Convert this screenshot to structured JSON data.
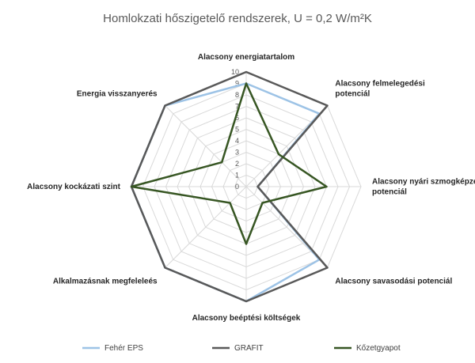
{
  "chart_data": {
    "type": "radar",
    "title": "Homlokzati hőszigetelő rendszerek, U = 0,2 W/m²K",
    "axes": [
      {
        "label": [
          "Alacsony energiatartalom"
        ]
      },
      {
        "label": [
          "Alacsony felmelegedési",
          "potenciál"
        ]
      },
      {
        "label": [
          "Alacsony nyári szmogképzési",
          "potenciál"
        ]
      },
      {
        "label": [
          "Alacsony savasodási potenciál"
        ]
      },
      {
        "label": [
          "Alacsony beéptési költségek"
        ]
      },
      {
        "label": [
          "Alkalmazásnak megfeleleés"
        ]
      },
      {
        "label": [
          "Alacsony kockázati szint"
        ]
      },
      {
        "label": [
          "Energia visszanyerés"
        ]
      }
    ],
    "rmin": 0,
    "rmax": 10,
    "ticks": [
      "0",
      "1",
      "2",
      "3",
      "4",
      "5",
      "6",
      "7",
      "8",
      "9",
      "10"
    ],
    "series": [
      {
        "name": "Fehér EPS",
        "color": "#9dc3e6",
        "values": [
          9,
          9,
          1,
          9,
          10,
          10,
          10,
          10
        ]
      },
      {
        "name": "GRAFIT",
        "color": "#595959",
        "values": [
          10,
          10,
          1,
          10,
          10,
          10,
          10,
          10
        ]
      },
      {
        "name": "Kőzetgyapot",
        "color": "#375623",
        "values": [
          9,
          4,
          7,
          2,
          5,
          2,
          10,
          3
        ]
      }
    ],
    "legend_position": "bottom",
    "grid": true
  }
}
